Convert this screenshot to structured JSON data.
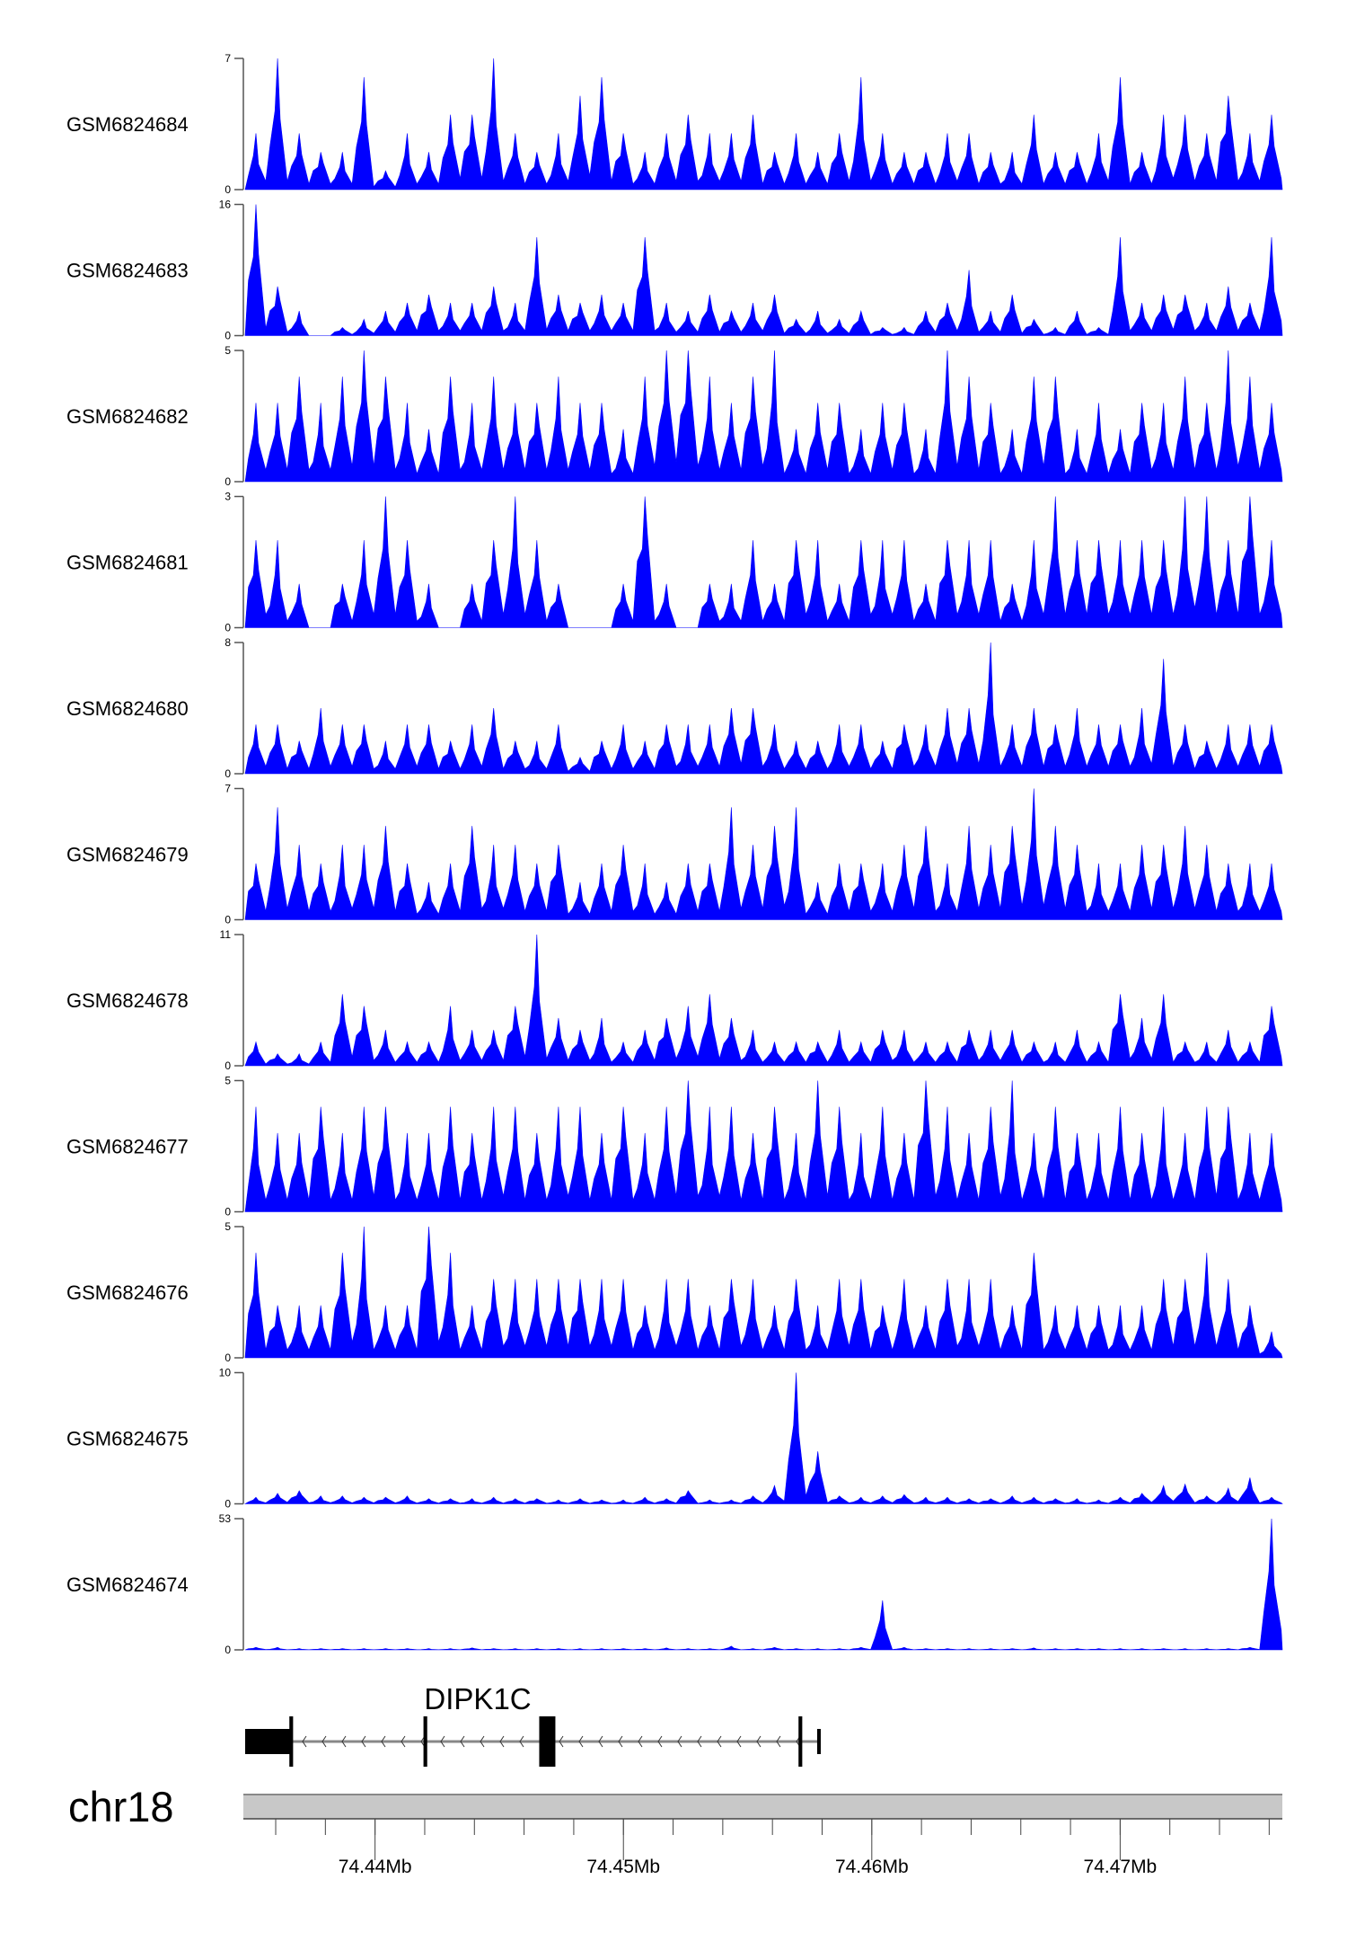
{
  "chart_data": {
    "type": "area",
    "fill_color": "#0000ff",
    "xlim_mb": [
      74.43477,
      74.47653
    ],
    "tracks": [
      {
        "name": "GSM6824684",
        "ymax": 7,
        "ymin": 0,
        "values": [
          3,
          7,
          3,
          2,
          2,
          6,
          1,
          3,
          2,
          4,
          4,
          7,
          3,
          2,
          3,
          5,
          6,
          3,
          2,
          3,
          4,
          3,
          3,
          4,
          2,
          3,
          2,
          3,
          6,
          3,
          2,
          2,
          3,
          3,
          2,
          2,
          4,
          2,
          2,
          3,
          6,
          2,
          4,
          4,
          3,
          5,
          3,
          4
        ]
      },
      {
        "name": "GSM6824683",
        "ymax": 16,
        "ymin": 0,
        "values": [
          16,
          6,
          3,
          0,
          1,
          2,
          3,
          4,
          5,
          4,
          4,
          6,
          4,
          12,
          5,
          4,
          5,
          4,
          12,
          4,
          3,
          5,
          3,
          4,
          5,
          2,
          3,
          2,
          3,
          1,
          1,
          3,
          4,
          8,
          3,
          5,
          2,
          1,
          3,
          1,
          12,
          4,
          5,
          5,
          4,
          6,
          4,
          12
        ]
      },
      {
        "name": "GSM6824682",
        "ymax": 5,
        "ymin": 0,
        "values": [
          3,
          3,
          4,
          3,
          4,
          5,
          4,
          3,
          2,
          4,
          3,
          4,
          3,
          3,
          4,
          3,
          3,
          2,
          4,
          5,
          5,
          4,
          3,
          4,
          5,
          2,
          3,
          3,
          2,
          3,
          3,
          2,
          5,
          4,
          3,
          2,
          4,
          4,
          2,
          3,
          2,
          3,
          3,
          4,
          3,
          5,
          4,
          3
        ]
      },
      {
        "name": "GSM6824681",
        "ymax": 3,
        "ymin": 0,
        "values": [
          2,
          2,
          1,
          0,
          1,
          2,
          3,
          2,
          1,
          0,
          1,
          2,
          3,
          2,
          1,
          0,
          0,
          1,
          3,
          1,
          0,
          1,
          1,
          2,
          1,
          2,
          2,
          1,
          2,
          2,
          2,
          1,
          2,
          2,
          2,
          1,
          2,
          3,
          2,
          2,
          2,
          2,
          2,
          3,
          3,
          2,
          3,
          2
        ]
      },
      {
        "name": "GSM6824680",
        "ymax": 8,
        "ymin": 0,
        "values": [
          3,
          3,
          2,
          4,
          3,
          3,
          2,
          3,
          3,
          2,
          3,
          4,
          2,
          2,
          3,
          1,
          2,
          3,
          2,
          3,
          3,
          3,
          4,
          4,
          3,
          2,
          2,
          3,
          3,
          2,
          3,
          3,
          4,
          4,
          8,
          3,
          4,
          3,
          4,
          3,
          3,
          4,
          7,
          3,
          2,
          3,
          3,
          3
        ]
      },
      {
        "name": "GSM6824679",
        "ymax": 7,
        "ymin": 0,
        "values": [
          3,
          6,
          4,
          3,
          4,
          4,
          5,
          3,
          2,
          3,
          5,
          4,
          4,
          3,
          4,
          2,
          3,
          4,
          3,
          2,
          3,
          3,
          6,
          4,
          5,
          6,
          2,
          3,
          3,
          3,
          4,
          5,
          3,
          5,
          4,
          5,
          7,
          5,
          4,
          3,
          3,
          4,
          4,
          5,
          4,
          3,
          3,
          3
        ]
      },
      {
        "name": "GSM6824678",
        "ymax": 11,
        "ymin": 0,
        "values": [
          2,
          1,
          1,
          2,
          6,
          5,
          3,
          2,
          2,
          5,
          3,
          3,
          5,
          11,
          4,
          3,
          4,
          2,
          3,
          4,
          5,
          6,
          4,
          3,
          2,
          2,
          2,
          3,
          2,
          3,
          3,
          2,
          2,
          3,
          3,
          3,
          2,
          2,
          3,
          2,
          6,
          4,
          6,
          2,
          2,
          3,
          2,
          5
        ]
      },
      {
        "name": "GSM6824677",
        "ymax": 5,
        "ymin": 0,
        "values": [
          4,
          3,
          3,
          4,
          3,
          4,
          4,
          3,
          3,
          4,
          3,
          4,
          4,
          3,
          4,
          4,
          3,
          4,
          3,
          4,
          5,
          4,
          4,
          3,
          4,
          3,
          5,
          4,
          3,
          4,
          3,
          5,
          4,
          3,
          4,
          5,
          3,
          4,
          3,
          3,
          4,
          3,
          4,
          3,
          4,
          4,
          3,
          3
        ]
      },
      {
        "name": "GSM6824676",
        "ymax": 5,
        "ymin": 0,
        "values": [
          4,
          2,
          2,
          2,
          4,
          5,
          2,
          2,
          5,
          4,
          2,
          3,
          3,
          3,
          3,
          3,
          3,
          3,
          2,
          3,
          3,
          2,
          3,
          3,
          2,
          3,
          2,
          3,
          3,
          2,
          3,
          2,
          3,
          3,
          3,
          2,
          4,
          2,
          2,
          2,
          2,
          2,
          3,
          3,
          4,
          3,
          2,
          1
        ]
      },
      {
        "name": "GSM6824675",
        "ymax": 10,
        "ymin": 0,
        "values": [
          0.5,
          0.8,
          1,
          0.6,
          0.6,
          0.5,
          0.5,
          0.6,
          0.4,
          0.4,
          0.4,
          0.5,
          0.4,
          0.4,
          0.3,
          0.4,
          0.3,
          0.3,
          0.5,
          0.4,
          1,
          0.3,
          0.3,
          0.6,
          1.4,
          10,
          4,
          0.6,
          0.5,
          0.6,
          0.7,
          0.5,
          0.5,
          0.4,
          0.4,
          0.6,
          0.5,
          0.4,
          0.4,
          0.3,
          0.5,
          0.8,
          1.4,
          1.5,
          0.6,
          1.2,
          2,
          0.5
        ]
      },
      {
        "name": "GSM6824674",
        "ymax": 53,
        "ymin": 0,
        "values": [
          1,
          1,
          0.5,
          0.5,
          0.5,
          0.5,
          0.5,
          0.5,
          0.5,
          0.5,
          0.8,
          0.5,
          0.5,
          0.5,
          0.5,
          0.5,
          0.5,
          0.5,
          0.5,
          0.8,
          0.5,
          0.5,
          1.5,
          0.5,
          1,
          0.5,
          0.5,
          0.5,
          1,
          20,
          1,
          0.5,
          0.5,
          0.5,
          0.5,
          0.5,
          0.8,
          0.5,
          0.5,
          0.5,
          0.5,
          0.5,
          0.5,
          0.5,
          0.5,
          0.5,
          1,
          53
        ]
      }
    ],
    "gene": {
      "name": "DIPK1C",
      "strand": "-",
      "span_mb": [
        74.43477,
        74.45784
      ],
      "utr": [
        [
          74.43477,
          74.43661
        ]
      ],
      "exons": [
        [
          74.43655,
          74.4367
        ],
        [
          74.44195,
          74.4421
        ],
        [
          74.44661,
          74.44726
        ],
        [
          74.45705,
          74.4572
        ]
      ],
      "short_exons": [
        [
          74.4578,
          74.4579
        ]
      ]
    },
    "ideogram": {
      "chromosome": "chr18",
      "minor_tick_step_mb": 0.002,
      "major_ticks": [
        {
          "value": 74.44,
          "label": "74.44Mb"
        },
        {
          "value": 74.45,
          "label": "74.45Mb"
        },
        {
          "value": 74.46,
          "label": "74.46Mb"
        },
        {
          "value": 74.47,
          "label": "74.47Mb"
        }
      ]
    }
  }
}
